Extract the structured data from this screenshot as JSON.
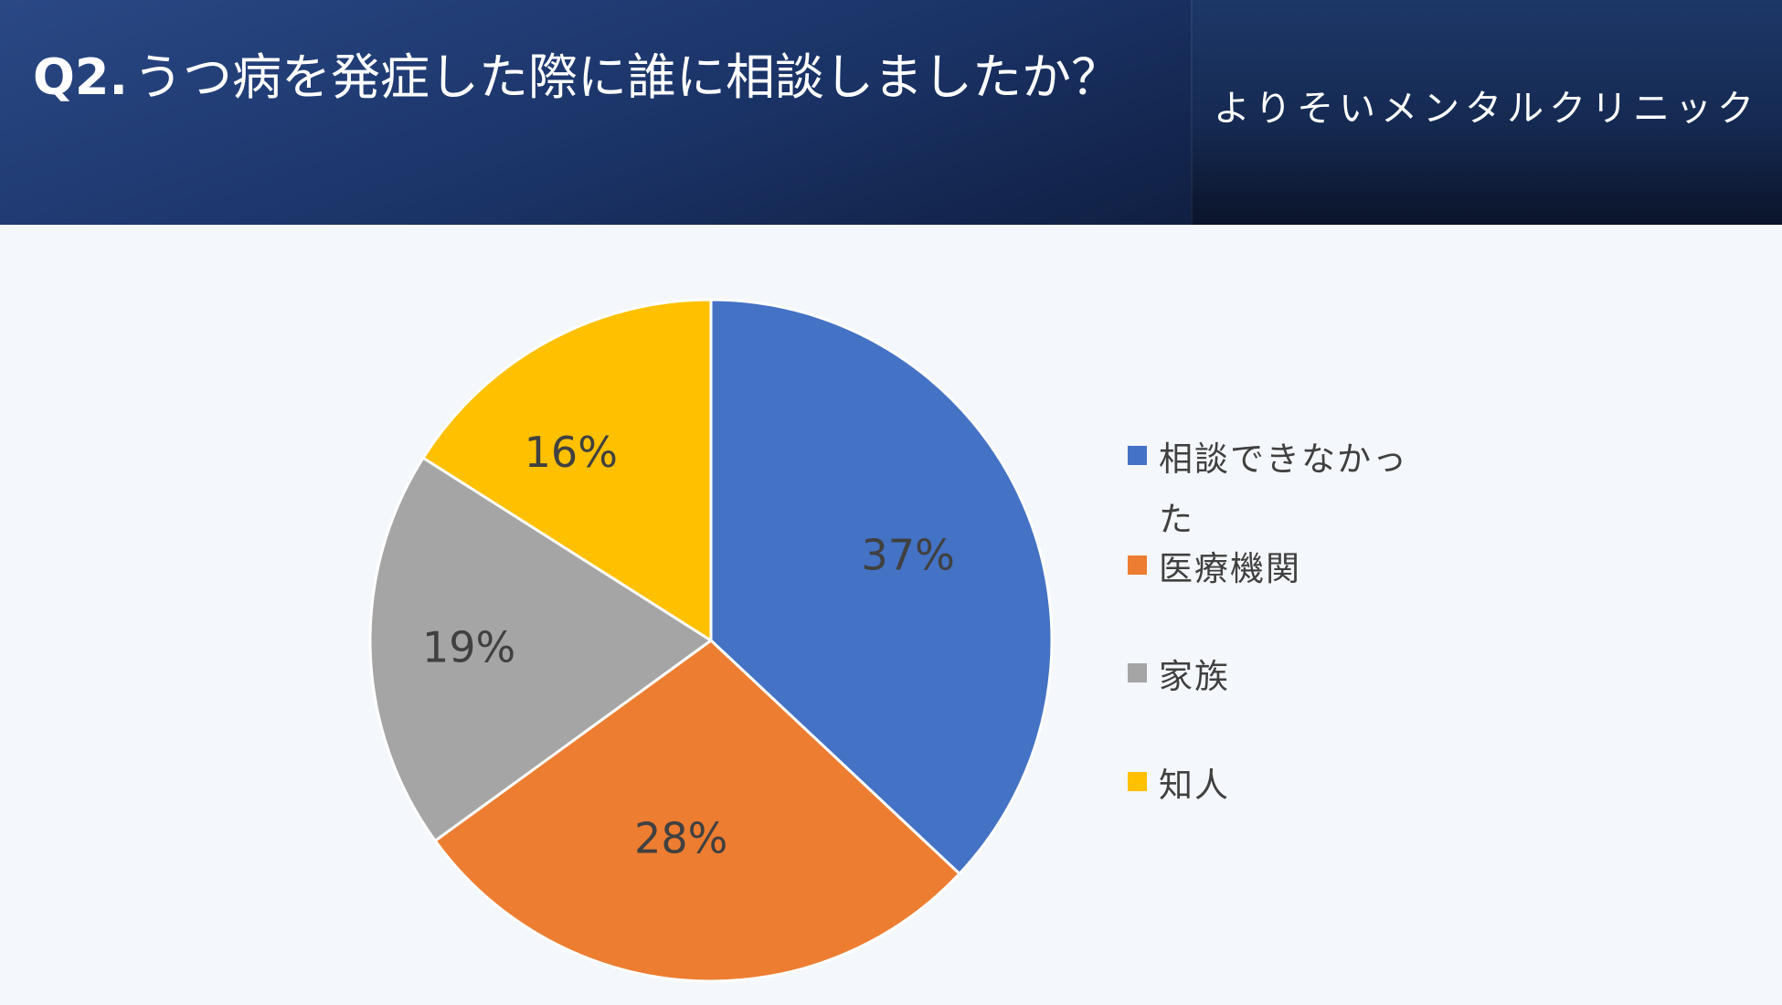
{
  "header": {
    "question_number": "Q2.",
    "question_text": "うつ病を発症した際に誰に相談しましたか？",
    "clinic_name": "よりそいメンタルクリニック"
  },
  "chart_data": {
    "type": "pie",
    "start_angle_deg": 0,
    "direction": "clockwise",
    "legend_position": "right",
    "slices": [
      {
        "label": "相談できなかった",
        "value": 37,
        "data_label": "37%",
        "color": "#4472c4"
      },
      {
        "label": "医療機関",
        "value": 28,
        "data_label": "28%",
        "color": "#ed7d31"
      },
      {
        "label": "家族",
        "value": 19,
        "data_label": "19%",
        "color": "#a5a5a5"
      },
      {
        "label": "知人",
        "value": 16,
        "data_label": "16%",
        "color": "#ffc000"
      }
    ]
  }
}
